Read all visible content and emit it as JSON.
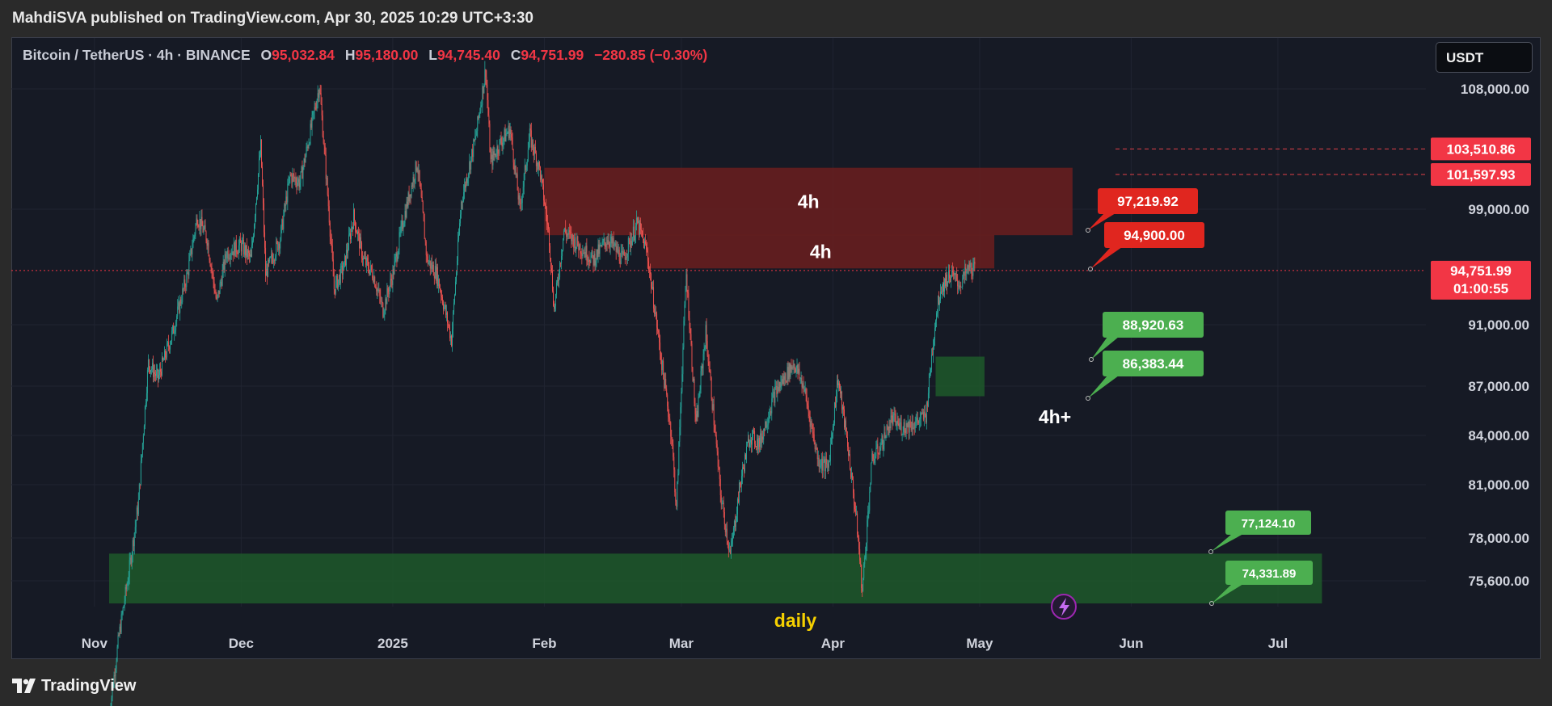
{
  "header": {
    "published_line": "MahdiSVA published on TradingView.com, Apr 30, 2025 10:29 UTC+3:30"
  },
  "legend": {
    "symbol_line": "Bitcoin / TetherUS · 4h · BINANCE",
    "o_label": "O",
    "o_value": "95,032.84",
    "h_label": "H",
    "h_value": "95,180.00",
    "l_label": "L",
    "l_value": "94,745.40",
    "c_label": "C",
    "c_value": "94,751.99",
    "change": "−280.85 (−0.30%)"
  },
  "currency_button": "USDT",
  "footer": {
    "brand": "TradingView"
  },
  "colors": {
    "up": "#26a69a",
    "down": "#ef5350",
    "bg": "#161a25",
    "red_zone": "#6b1f1f",
    "green_zone": "#1e5c2a",
    "red_label": "#e0261f",
    "green_label": "#4caf50"
  },
  "chart_data": {
    "type": "line",
    "symbol": "BTC/USDT",
    "timeframe": "4h",
    "x_ticks": [
      "Nov",
      "Dec",
      "2025",
      "Feb",
      "Mar",
      "Apr",
      "May",
      "Jun",
      "Jul"
    ],
    "y_ticks": [
      "108,000.00",
      "99,000.00",
      "91,000.00",
      "87,000.00",
      "84,000.00",
      "81,000.00",
      "78,000.00",
      "75,600.00"
    ],
    "series": [
      {
        "values": [
          [
            "2024-11-04",
            68000
          ],
          [
            "2024-11-06",
            72500
          ],
          [
            "2024-11-08",
            76000
          ],
          [
            "2024-11-10",
            80000
          ],
          [
            "2024-11-12",
            88500
          ],
          [
            "2024-11-14",
            87500
          ],
          [
            "2024-11-17",
            90500
          ],
          [
            "2024-11-20",
            94500
          ],
          [
            "2024-11-22",
            98500
          ],
          [
            "2024-11-24",
            97000
          ],
          [
            "2024-11-26",
            92500
          ],
          [
            "2024-11-28",
            96000
          ],
          [
            "2024-12-01",
            96500
          ],
          [
            "2024-12-03",
            95500
          ],
          [
            "2024-12-05",
            103700
          ],
          [
            "2024-12-06",
            94500
          ],
          [
            "2024-12-09",
            97000
          ],
          [
            "2024-12-11",
            101500
          ],
          [
            "2024-12-13",
            101000
          ],
          [
            "2024-12-15",
            104500
          ],
          [
            "2024-12-17",
            108300
          ],
          [
            "2024-12-19",
            98500
          ],
          [
            "2024-12-20",
            93500
          ],
          [
            "2024-12-22",
            95000
          ],
          [
            "2024-12-24",
            98500
          ],
          [
            "2024-12-26",
            95500
          ],
          [
            "2024-12-28",
            94500
          ],
          [
            "2024-12-30",
            92000
          ],
          [
            "2025-01-01",
            94500
          ],
          [
            "2025-01-03",
            98000
          ],
          [
            "2025-01-06",
            102500
          ],
          [
            "2025-01-08",
            95500
          ],
          [
            "2025-01-10",
            94500
          ],
          [
            "2025-01-13",
            90000
          ],
          [
            "2025-01-15",
            99500
          ],
          [
            "2025-01-18",
            104500
          ],
          [
            "2025-01-20",
            109500
          ],
          [
            "2025-01-21",
            102500
          ],
          [
            "2025-01-23",
            104000
          ],
          [
            "2025-01-25",
            105000
          ],
          [
            "2025-01-27",
            99000
          ],
          [
            "2025-01-29",
            104500
          ],
          [
            "2025-01-31",
            102000
          ],
          [
            "2025-02-02",
            97000
          ],
          [
            "2025-02-03",
            92000
          ],
          [
            "2025-02-05",
            97500
          ],
          [
            "2025-02-08",
            96500
          ],
          [
            "2025-02-11",
            95500
          ],
          [
            "2025-02-14",
            97000
          ],
          [
            "2025-02-17",
            95500
          ],
          [
            "2025-02-20",
            98000
          ],
          [
            "2025-02-22",
            96000
          ],
          [
            "2025-02-25",
            88500
          ],
          [
            "2025-02-27",
            84000
          ],
          [
            "2025-02-28",
            79500
          ],
          [
            "2025-03-02",
            94500
          ],
          [
            "2025-03-04",
            84500
          ],
          [
            "2025-03-06",
            90500
          ],
          [
            "2025-03-09",
            80500
          ],
          [
            "2025-03-11",
            77000
          ],
          [
            "2025-03-13",
            81000
          ],
          [
            "2025-03-15",
            84000
          ],
          [
            "2025-03-17",
            83500
          ],
          [
            "2025-03-20",
            86500
          ],
          [
            "2025-03-24",
            88500
          ],
          [
            "2025-03-26",
            87000
          ],
          [
            "2025-03-29",
            82500
          ],
          [
            "2025-03-31",
            82000
          ],
          [
            "2025-04-02",
            87500
          ],
          [
            "2025-04-04",
            83500
          ],
          [
            "2025-04-06",
            78500
          ],
          [
            "2025-04-07",
            75000
          ],
          [
            "2025-04-09",
            82500
          ],
          [
            "2025-04-11",
            83500
          ],
          [
            "2025-04-13",
            85000
          ],
          [
            "2025-04-15",
            84500
          ],
          [
            "2025-04-18",
            84800
          ],
          [
            "2025-04-20",
            85200
          ],
          [
            "2025-04-22",
            91500
          ],
          [
            "2025-04-23",
            93500
          ],
          [
            "2025-04-25",
            94500
          ],
          [
            "2025-04-27",
            93800
          ],
          [
            "2025-04-29",
            95000
          ],
          [
            "2025-04-30",
            94751.99
          ]
        ]
      }
    ],
    "zones": [
      {
        "label": "4h",
        "color": "red",
        "from": "2025-02-01",
        "to": "2025-05-20",
        "low": 97200,
        "high": 102100
      },
      {
        "label": "4h",
        "color": "red",
        "from": "2025-02-22",
        "to": "2025-05-04",
        "low": 94900,
        "high": 97219.92
      },
      {
        "label": "4h+",
        "color": "green",
        "from": "2025-04-22",
        "to": "2025-05-02",
        "low": 86383.44,
        "high": 88920.63
      },
      {
        "label": "daily",
        "color": "green",
        "from": "2024-11-04",
        "to": "2025-07-10",
        "low": 74331.89,
        "high": 77124.1
      }
    ],
    "price_tags": [
      {
        "text": "97,219.92",
        "color": "red"
      },
      {
        "text": "94,900.00",
        "color": "red"
      },
      {
        "text": "88,920.63",
        "color": "green"
      },
      {
        "text": "86,383.44",
        "color": "green"
      },
      {
        "text": "77,124.10",
        "color": "green"
      },
      {
        "text": "74,331.89",
        "color": "green"
      }
    ],
    "axis_tags": [
      {
        "text": "103,510.86",
        "value": 103510.86
      },
      {
        "text": "101,597.93",
        "value": 101597.93
      }
    ],
    "last_price": {
      "text": "94,751.99",
      "countdown": "01:00:55",
      "value": 94751.99
    }
  }
}
